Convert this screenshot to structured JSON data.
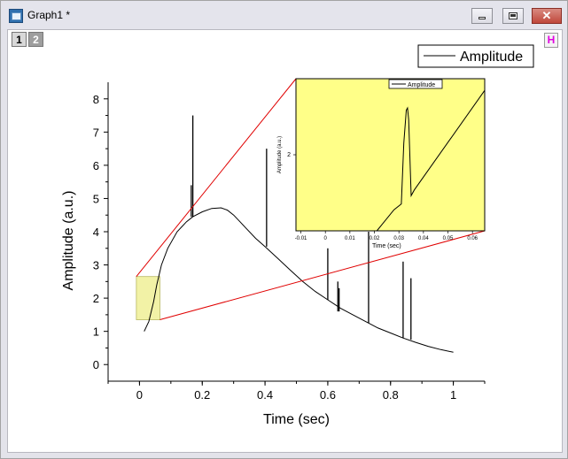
{
  "window": {
    "title": "Graph1 *",
    "icons": {
      "app": "graph-window-icon",
      "minimize": "minimize-icon",
      "maximize": "maximize-icon",
      "close": "close-icon"
    },
    "close_glyph": "✕"
  },
  "layers": {
    "tabs": [
      "1",
      "2"
    ],
    "active": "1",
    "h_button": "H"
  },
  "chart_data": [
    {
      "type": "line",
      "xlabel": "Time (sec)",
      "ylabel": "Amplitude (a.u.)",
      "xlim": [
        -0.1,
        1.1
      ],
      "ylim": [
        -0.5,
        8.5
      ],
      "xticks": [
        "0",
        "0.2",
        "0.4",
        "0.6",
        "0.8",
        "1"
      ],
      "yticks": [
        "0",
        "1",
        "2",
        "3",
        "4",
        "5",
        "6",
        "7",
        "8"
      ],
      "legend": {
        "entries": [
          "Amplitude"
        ],
        "placement": "top-right"
      },
      "series": [
        {
          "name": "Amplitude",
          "color": "#000000",
          "x": [
            0.015,
            0.03,
            0.045,
            0.055,
            0.07,
            0.09,
            0.12,
            0.15,
            0.17,
            0.2,
            0.23,
            0.26,
            0.28,
            0.3,
            0.32,
            0.34,
            0.37,
            0.4,
            0.44,
            0.48,
            0.52,
            0.56,
            0.6,
            0.64,
            0.68,
            0.72,
            0.76,
            0.8,
            0.84,
            0.88,
            0.92,
            0.96,
            1.0
          ],
          "y": [
            1.0,
            1.3,
            1.9,
            2.4,
            3.0,
            3.5,
            4.0,
            4.3,
            4.45,
            4.6,
            4.7,
            4.72,
            4.65,
            4.5,
            4.3,
            4.1,
            3.8,
            3.55,
            3.2,
            2.85,
            2.5,
            2.2,
            1.95,
            1.7,
            1.5,
            1.3,
            1.1,
            0.95,
            0.8,
            0.67,
            0.55,
            0.45,
            0.37
          ]
        }
      ],
      "spikes": [
        {
          "x": 0.17,
          "ymin": 4.45,
          "ymax": 7.5
        },
        {
          "x": 0.165,
          "ymin": 4.45,
          "ymax": 5.4
        },
        {
          "x": 0.405,
          "ymin": 3.55,
          "ymax": 6.5
        },
        {
          "x": 0.6,
          "ymin": 1.95,
          "ymax": 3.5
        },
        {
          "x": 0.632,
          "ymin": 1.6,
          "ymax": 2.5
        },
        {
          "x": 0.636,
          "ymin": 1.6,
          "ymax": 2.3
        },
        {
          "x": 0.73,
          "ymin": 1.25,
          "ymax": 4.0
        },
        {
          "x": 0.84,
          "ymin": 0.8,
          "ymax": 3.1
        },
        {
          "x": 0.865,
          "ymin": 0.75,
          "ymax": 2.6
        }
      ],
      "zoom_region": {
        "x": [
          -0.01,
          0.065
        ],
        "y": [
          1.35,
          2.65
        ],
        "fill": "#f2f2a6"
      }
    },
    {
      "type": "line",
      "xlabel": "Time (sec)",
      "ylabel": "Amplitude (a.u.)",
      "xlim": [
        -0.012,
        0.065
      ],
      "ylim": [
        1.35,
        2.65
      ],
      "xticks": [
        "-0.01",
        "0",
        "0.01",
        "0.02",
        "0.03",
        "0.04",
        "0.05",
        "0.06"
      ],
      "yticks": [
        "2"
      ],
      "legend": {
        "entries": [
          "Amplitude"
        ],
        "placement": "top-center"
      },
      "background": "#ffff88",
      "series": [
        {
          "name": "Amplitude",
          "color": "#000000",
          "x": [
            0.021,
            0.028,
            0.031,
            0.032,
            0.033,
            0.0335,
            0.034,
            0.035,
            0.0363,
            0.065
          ],
          "y": [
            1.35,
            1.53,
            1.58,
            2.1,
            2.38,
            2.4,
            2.3,
            1.65,
            1.7,
            2.55
          ]
        }
      ]
    }
  ]
}
